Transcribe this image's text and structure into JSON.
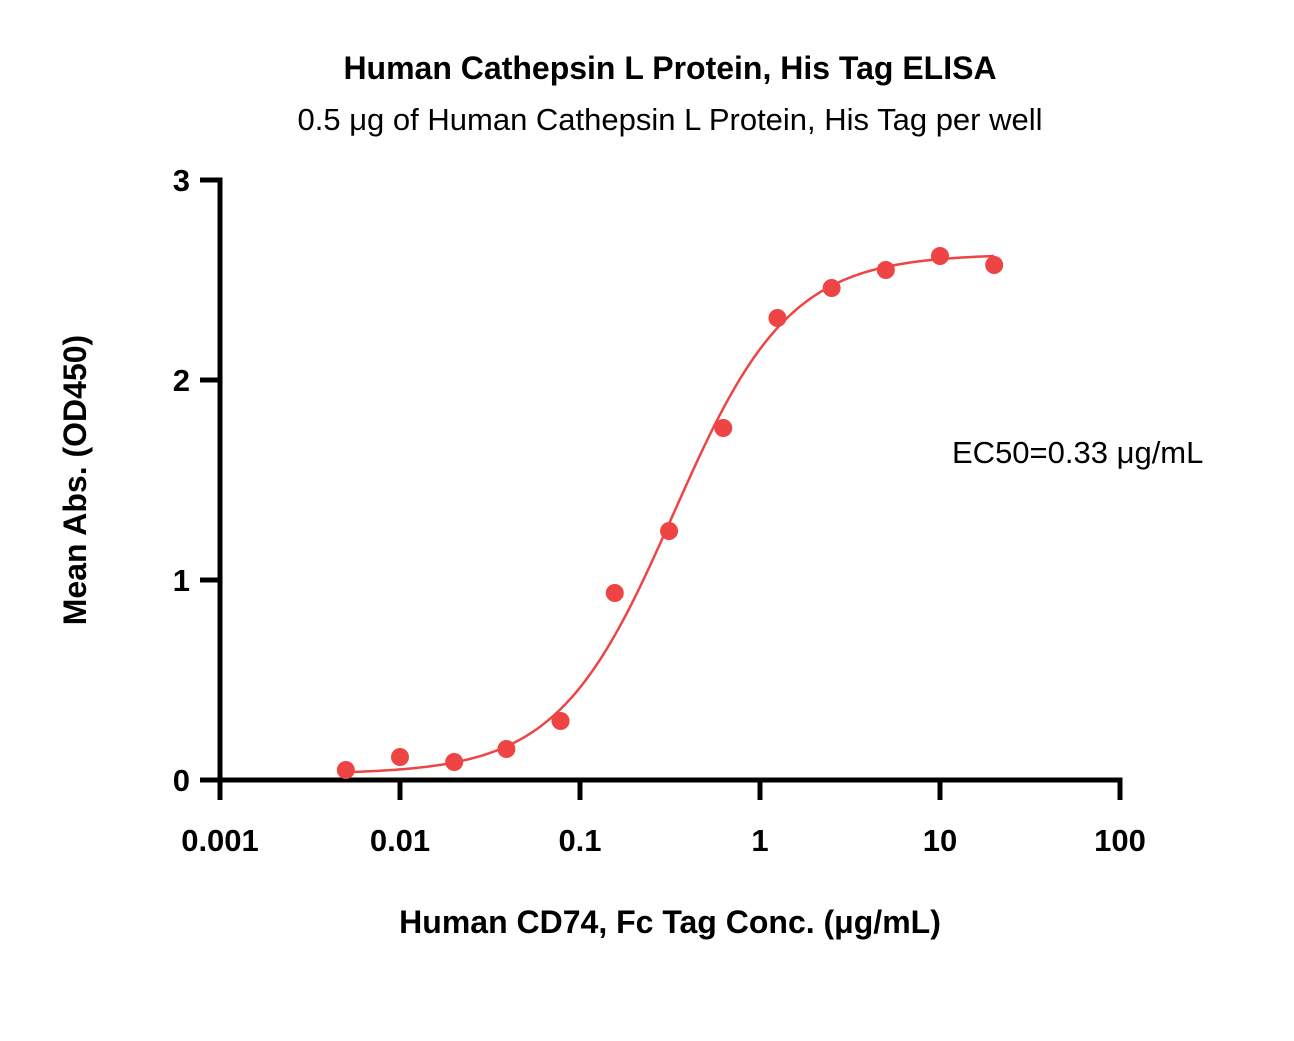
{
  "chart_data": {
    "type": "scatter",
    "title": "Human Cathepsin L Protein, His Tag ELISA",
    "subtitle": "0.5 μg of Human Cathepsin L Protein, His Tag per well",
    "xlabel": "Human CD74, Fc Tag Conc. (μg/mL)",
    "ylabel": "Mean Abs. (OD450)",
    "x_scale": "log",
    "xlim": [
      0.001,
      100
    ],
    "ylim": [
      0,
      3
    ],
    "x_ticks": [
      0.001,
      0.01,
      0.1,
      1,
      10,
      100
    ],
    "x_tick_labels": [
      "0.001",
      "0.01",
      "0.1",
      "1",
      "10",
      "100"
    ],
    "y_ticks": [
      0,
      1,
      2,
      3
    ],
    "y_tick_labels": [
      "0",
      "1",
      "2",
      "3"
    ],
    "grid": false,
    "annotation": "EC50=0.33 μg/mL",
    "series": [
      {
        "color": "#ee4444",
        "x": [
          0.005,
          0.01,
          0.02,
          0.039,
          0.078,
          0.156,
          0.3125,
          0.625,
          1.25,
          2.5,
          5,
          10,
          20
        ],
        "y": [
          0.05,
          0.115,
          0.09,
          0.155,
          0.295,
          0.935,
          1.245,
          1.76,
          2.31,
          2.46,
          2.55,
          2.62,
          2.575
        ],
        "fit": {
          "model": "4PL",
          "bottom": 0.03,
          "top": 2.63,
          "ec50": 0.33,
          "hill": 1.35,
          "x_range": [
            0.005,
            20
          ]
        }
      }
    ]
  }
}
